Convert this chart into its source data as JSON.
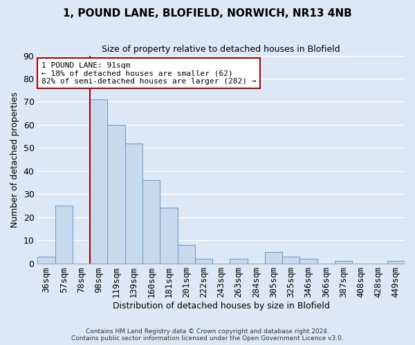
{
  "title": "1, POUND LANE, BLOFIELD, NORWICH, NR13 4NB",
  "subtitle": "Size of property relative to detached houses in Blofield",
  "xlabel": "Distribution of detached houses by size in Blofield",
  "ylabel": "Number of detached properties",
  "bar_labels": [
    "36sqm",
    "57sqm",
    "78sqm",
    "98sqm",
    "119sqm",
    "139sqm",
    "160sqm",
    "181sqm",
    "201sqm",
    "222sqm",
    "243sqm",
    "263sqm",
    "284sqm",
    "305sqm",
    "325sqm",
    "346sqm",
    "366sqm",
    "387sqm",
    "408sqm",
    "428sqm",
    "449sqm"
  ],
  "bar_values": [
    3,
    25,
    0,
    71,
    60,
    52,
    36,
    24,
    8,
    2,
    0,
    2,
    0,
    5,
    3,
    2,
    0,
    1,
    0,
    0,
    1
  ],
  "bar_color": "#c8d8ed",
  "bar_edge_color": "#6699cc",
  "vline_index": 3,
  "vline_color": "#aa0000",
  "annotation_text": "1 POUND LANE: 91sqm\n← 18% of detached houses are smaller (62)\n82% of semi-detached houses are larger (282) →",
  "annotation_box_color": "white",
  "annotation_box_edge": "#aa0000",
  "ylim": [
    0,
    90
  ],
  "yticks": [
    0,
    10,
    20,
    30,
    40,
    50,
    60,
    70,
    80,
    90
  ],
  "background_color": "#dce8f5",
  "grid_color": "white",
  "footer_line1": "Contains HM Land Registry data © Crown copyright and database right 2024.",
  "footer_line2": "Contains public sector information licensed under the Open Government Licence v3.0."
}
